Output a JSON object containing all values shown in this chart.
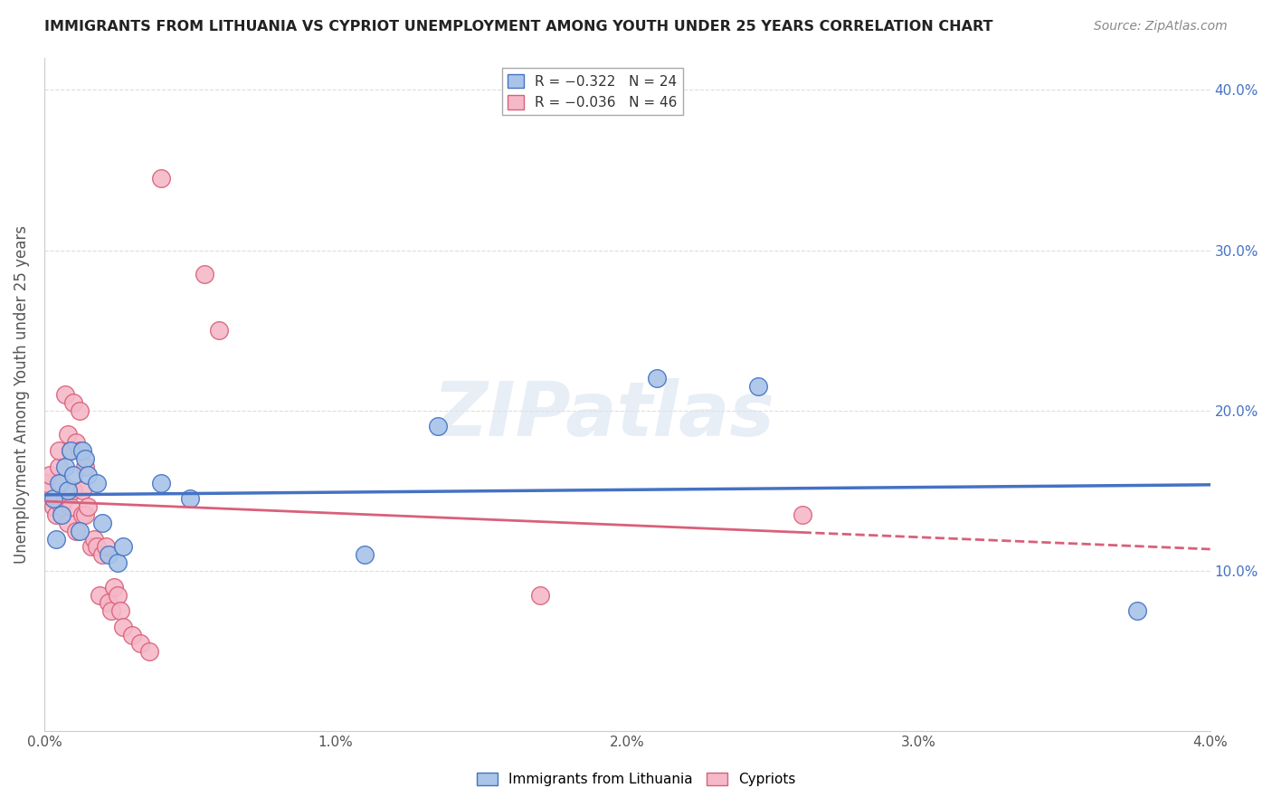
{
  "title": "IMMIGRANTS FROM LITHUANIA VS CYPRIOT UNEMPLOYMENT AMONG YOUTH UNDER 25 YEARS CORRELATION CHART",
  "source": "Source: ZipAtlas.com",
  "ylabel": "Unemployment Among Youth under 25 years",
  "legend_blue_r": "R = −0.322",
  "legend_blue_n": "N = 24",
  "legend_pink_r": "R = −0.036",
  "legend_pink_n": "N = 46",
  "legend_blue_label": "Immigrants from Lithuania",
  "legend_pink_label": "Cypriots",
  "blue_color": "#a8c4e8",
  "pink_color": "#f5b8c8",
  "trendline_blue": "#4472c4",
  "trendline_pink": "#d9607a",
  "blue_points_x": [
    0.03,
    0.04,
    0.05,
    0.06,
    0.07,
    0.08,
    0.09,
    0.1,
    0.12,
    0.13,
    0.14,
    0.15,
    0.18,
    0.2,
    0.22,
    0.25,
    0.27,
    0.4,
    0.5,
    1.1,
    1.35,
    2.1,
    2.45,
    3.75
  ],
  "blue_points_y": [
    14.5,
    12.0,
    15.5,
    13.5,
    16.5,
    15.0,
    17.5,
    16.0,
    12.5,
    17.5,
    17.0,
    16.0,
    15.5,
    13.0,
    11.0,
    10.5,
    11.5,
    15.5,
    14.5,
    11.0,
    19.0,
    22.0,
    21.5,
    7.5
  ],
  "pink_points_x": [
    0.01,
    0.02,
    0.03,
    0.04,
    0.04,
    0.05,
    0.05,
    0.06,
    0.06,
    0.07,
    0.07,
    0.08,
    0.08,
    0.09,
    0.09,
    0.1,
    0.1,
    0.11,
    0.11,
    0.12,
    0.12,
    0.13,
    0.13,
    0.14,
    0.14,
    0.15,
    0.16,
    0.17,
    0.18,
    0.19,
    0.2,
    0.21,
    0.22,
    0.23,
    0.24,
    0.25,
    0.26,
    0.27,
    0.3,
    0.33,
    0.36,
    0.4,
    0.55,
    0.6,
    1.7,
    2.6
  ],
  "pink_points_y": [
    15.5,
    16.0,
    14.0,
    14.5,
    13.5,
    16.5,
    17.5,
    15.5,
    14.0,
    21.0,
    14.5,
    13.0,
    18.5,
    17.5,
    14.0,
    20.5,
    15.0,
    18.0,
    12.5,
    17.5,
    20.0,
    13.5,
    15.0,
    13.5,
    16.5,
    14.0,
    11.5,
    12.0,
    11.5,
    8.5,
    11.0,
    11.5,
    8.0,
    7.5,
    9.0,
    8.5,
    7.5,
    6.5,
    6.0,
    5.5,
    5.0,
    34.5,
    28.5,
    25.0,
    8.5,
    13.5
  ],
  "xlim": [
    0.0,
    4.0
  ],
  "ylim": [
    0.0,
    42.0
  ],
  "xtick_vals": [
    0.0,
    1.0,
    2.0,
    3.0,
    4.0
  ],
  "ytick_vals": [
    10.0,
    20.0,
    30.0,
    40.0
  ],
  "watermark_text": "ZIPatlas",
  "background_color": "#ffffff",
  "grid_color": "#dddddd",
  "title_color": "#222222",
  "source_color": "#888888",
  "ylabel_color": "#555555"
}
